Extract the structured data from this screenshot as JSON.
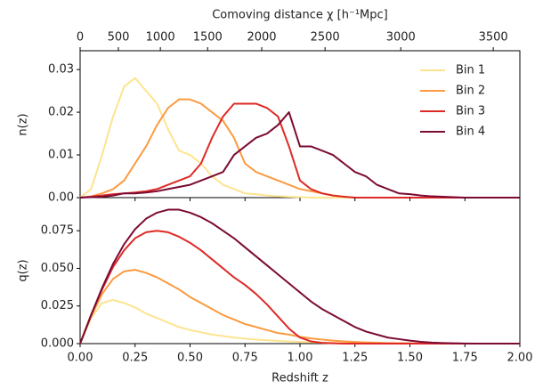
{
  "chart_data": [
    {
      "type": "line",
      "x2label": "Comoving distance χ [h⁻¹Mpc]",
      "x2ticks": [
        0,
        500,
        1000,
        1500,
        2000,
        2500,
        3000,
        3500
      ],
      "ylabel": "n(z)",
      "xlim": [
        0,
        2
      ],
      "ylim": [
        0,
        0.0344
      ],
      "yticks": [
        {
          "value": 0,
          "label": "0.00"
        },
        0.01,
        0.02,
        0.03
      ],
      "legend": "upper right",
      "x": [
        0,
        0.05,
        0.1,
        0.15,
        0.2,
        0.25,
        0.3,
        0.35,
        0.4,
        0.45,
        0.5,
        0.55,
        0.6,
        0.65,
        0.7,
        0.75,
        0.8,
        0.85,
        0.9,
        0.95,
        1.0,
        1.05,
        1.1,
        1.15,
        1.2,
        1.25,
        1.3,
        1.35,
        1.4,
        1.45,
        1.5,
        1.55,
        1.6,
        1.65,
        1.7,
        1.75,
        1.8,
        1.85,
        1.9,
        1.95,
        2.0
      ],
      "series": [
        {
          "name": "Bin 1",
          "color": "#fde48f",
          "values": [
            0,
            0.002,
            0.01,
            0.019,
            0.026,
            0.028,
            0.025,
            0.022,
            0.016,
            0.011,
            0.01,
            0.008,
            0.005,
            0.003,
            0.002,
            0.001,
            0.0008,
            0.0005,
            0.0003,
            0.0002,
            0.0001,
            0,
            0,
            0,
            0,
            0,
            0,
            0,
            0,
            0,
            0,
            0,
            0,
            0,
            0,
            0,
            0,
            0,
            0,
            0,
            0
          ]
        },
        {
          "name": "Bin 2",
          "color": "#fb9a40",
          "values": [
            0,
            0.0003,
            0.001,
            0.002,
            0.004,
            0.008,
            0.012,
            0.017,
            0.021,
            0.023,
            0.023,
            0.022,
            0.02,
            0.018,
            0.014,
            0.008,
            0.006,
            0.005,
            0.004,
            0.003,
            0.002,
            0.0015,
            0.001,
            0.0005,
            0.0002,
            0,
            0,
            0,
            0,
            0,
            0,
            0,
            0,
            0,
            0,
            0,
            0,
            0,
            0,
            0,
            0
          ]
        },
        {
          "name": "Bin 3",
          "color": "#de2a26",
          "values": [
            0,
            0.0002,
            0.0005,
            0.0008,
            0.001,
            0.0012,
            0.0015,
            0.002,
            0.003,
            0.004,
            0.005,
            0.008,
            0.014,
            0.019,
            0.022,
            0.022,
            0.022,
            0.021,
            0.019,
            0.012,
            0.004,
            0.002,
            0.001,
            0.0005,
            0.0002,
            0,
            0,
            0,
            0,
            0,
            0,
            0,
            0,
            0,
            0,
            0,
            0,
            0,
            0,
            0,
            0
          ]
        },
        {
          "name": "Bin 4",
          "color": "#7b0a34",
          "values": [
            0,
            0.0001,
            0.0002,
            0.0005,
            0.001,
            0.001,
            0.0012,
            0.0015,
            0.002,
            0.0025,
            0.003,
            0.004,
            0.005,
            0.006,
            0.01,
            0.012,
            0.014,
            0.015,
            0.017,
            0.02,
            0.012,
            0.012,
            0.011,
            0.01,
            0.008,
            0.006,
            0.005,
            0.003,
            0.002,
            0.001,
            0.0008,
            0.0005,
            0.0003,
            0.0002,
            0.0001,
            0,
            0,
            0,
            0,
            0,
            0
          ]
        }
      ]
    },
    {
      "type": "line",
      "xlabel": "Redshift z",
      "ylabel": "q(z)",
      "xlim": [
        0,
        2
      ],
      "xticks": [
        {
          "value": 0,
          "label": "0.00"
        },
        0.25,
        {
          "value": 0.5,
          "label": "0.50"
        },
        0.75,
        {
          "value": 1,
          "label": "1.00"
        },
        1.25,
        {
          "value": 1.5,
          "label": "1.50"
        },
        1.75,
        {
          "value": 2,
          "label": "2.00"
        }
      ],
      "ylim": [
        0,
        0.097
      ],
      "yticks": [
        {
          "value": 0,
          "label": "0.000"
        },
        0.025,
        {
          "value": 0.05,
          "label": "0.050"
        },
        0.075
      ],
      "x": [
        0,
        0.05,
        0.1,
        0.15,
        0.2,
        0.25,
        0.3,
        0.35,
        0.4,
        0.45,
        0.5,
        0.55,
        0.6,
        0.65,
        0.7,
        0.75,
        0.8,
        0.85,
        0.9,
        0.95,
        1.0,
        1.05,
        1.1,
        1.15,
        1.2,
        1.25,
        1.3,
        1.35,
        1.4,
        1.45,
        1.5,
        1.55,
        1.6,
        1.65,
        1.7,
        1.75,
        1.8,
        1.85,
        1.9,
        1.95,
        2.0
      ],
      "series": [
        {
          "color": "#fde48f",
          "values": [
            0,
            0.017,
            0.027,
            0.029,
            0.027,
            0.024,
            0.02,
            0.017,
            0.014,
            0.011,
            0.009,
            0.0075,
            0.006,
            0.005,
            0.004,
            0.0033,
            0.0027,
            0.0022,
            0.0018,
            0.0014,
            0.0011,
            0.0009,
            0.0007,
            0.0005,
            0.0004,
            0.0003,
            0.0002,
            0.0002,
            0.0001,
            0.0001,
            0,
            0,
            0,
            0,
            0,
            0,
            0,
            0,
            0,
            0,
            0
          ]
        },
        {
          "color": "#fb9a40",
          "values": [
            0,
            0.018,
            0.033,
            0.043,
            0.048,
            0.049,
            0.047,
            0.044,
            0.04,
            0.036,
            0.031,
            0.027,
            0.023,
            0.019,
            0.016,
            0.013,
            0.011,
            0.009,
            0.007,
            0.006,
            0.0045,
            0.0035,
            0.0027,
            0.002,
            0.0015,
            0.0011,
            0.0008,
            0.0006,
            0.0004,
            0.0003,
            0.0002,
            0.0001,
            0.0001,
            0,
            0,
            0,
            0,
            0,
            0,
            0,
            0
          ]
        },
        {
          "color": "#de2a26",
          "values": [
            0,
            0.019,
            0.036,
            0.051,
            0.062,
            0.07,
            0.074,
            0.075,
            0.074,
            0.071,
            0.067,
            0.062,
            0.056,
            0.05,
            0.044,
            0.039,
            0.033,
            0.026,
            0.018,
            0.01,
            0.004,
            0.0015,
            0.0005,
            0.0002,
            0,
            0,
            0,
            0,
            0,
            0,
            0,
            0,
            0,
            0,
            0,
            0,
            0,
            0,
            0,
            0,
            0
          ]
        },
        {
          "color": "#7b0a34",
          "values": [
            0,
            0.019,
            0.037,
            0.053,
            0.066,
            0.076,
            0.083,
            0.087,
            0.089,
            0.089,
            0.087,
            0.084,
            0.08,
            0.075,
            0.07,
            0.064,
            0.058,
            0.052,
            0.046,
            0.04,
            0.034,
            0.028,
            0.023,
            0.019,
            0.015,
            0.011,
            0.008,
            0.006,
            0.004,
            0.003,
            0.002,
            0.0012,
            0.0007,
            0.0004,
            0.0002,
            0.0001,
            0,
            0,
            0,
            0,
            0
          ]
        }
      ]
    }
  ]
}
